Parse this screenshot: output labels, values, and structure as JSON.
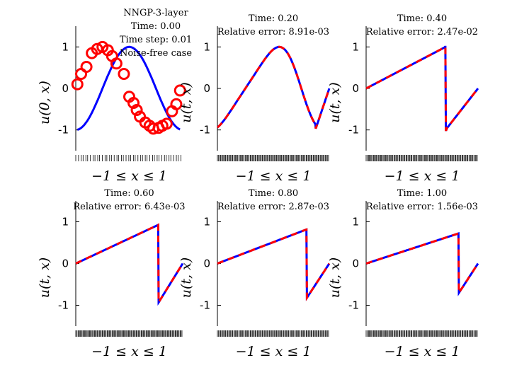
{
  "figure": {
    "method_label": "NNGP-3-layer",
    "time_step_label": "Time step: 0.01",
    "noise_label": "Noise-free case"
  },
  "chart_data": [
    {
      "type": "line",
      "title": "Time: 0.00",
      "xlabel": "−1 ≤ x ≤ 1",
      "ylabel": "u(0, x)",
      "xlim": [
        -1,
        1
      ],
      "ylim": [
        -1.5,
        1.5
      ],
      "yticks": [
        "1",
        "0",
        "-1"
      ],
      "ytick_values": [
        1,
        0,
        -1
      ],
      "marker_x": [
        -0.97,
        -0.9,
        -0.8,
        -0.7,
        -0.6,
        -0.5,
        -0.4,
        -0.32,
        -0.24,
        -0.1,
        0.0,
        0.08,
        0.14,
        0.2,
        0.3,
        0.38,
        0.45,
        0.55,
        0.62,
        0.7,
        0.8,
        0.88,
        0.95
      ],
      "marker_y": [
        0.1,
        0.35,
        0.52,
        0.85,
        0.95,
        1.0,
        0.92,
        0.78,
        0.6,
        0.35,
        -0.2,
        -0.35,
        -0.52,
        -0.68,
        -0.82,
        -0.9,
        -0.97,
        -0.95,
        -0.9,
        -0.85,
        -0.55,
        -0.38,
        -0.05
      ]
    },
    {
      "type": "line",
      "title": "Time: 0.20",
      "subtitle": "Relative error:  8.91e-03",
      "xlabel": "−1 ≤ x ≤ 1",
      "ylabel": "u(t, x)",
      "xlim": [
        -1,
        1
      ],
      "ylim": [
        -1.5,
        1.5
      ],
      "yticks": [
        "1",
        "0",
        "-1"
      ],
      "ytick_values": [
        1,
        0,
        -1
      ],
      "shock": 0.2
    },
    {
      "type": "line",
      "title": "Time: 0.40",
      "subtitle": "Relative error:  2.47e-02",
      "xlabel": "−1 ≤ x ≤ 1",
      "ylabel": "u(t, x)",
      "xlim": [
        -1,
        1
      ],
      "ylim": [
        -1.5,
        1.5
      ],
      "yticks": [
        "1",
        "0",
        "-1"
      ],
      "ytick_values": [
        1,
        0,
        -1
      ],
      "shock": 0.4
    },
    {
      "type": "line",
      "title": "Time: 0.60",
      "subtitle": "Relative error:  6.43e-03",
      "xlabel": "−1 ≤ x ≤ 1",
      "ylabel": "u(t, x)",
      "xlim": [
        -1,
        1
      ],
      "ylim": [
        -1.5,
        1.5
      ],
      "yticks": [
        "1",
        "0",
        "-1"
      ],
      "ytick_values": [
        1,
        0,
        -1
      ],
      "shock": 0.6
    },
    {
      "type": "line",
      "title": "Time: 0.80",
      "subtitle": "Relative error:  2.87e-03",
      "xlabel": "−1 ≤ x ≤ 1",
      "ylabel": "u(t, x)",
      "xlim": [
        -1,
        1
      ],
      "ylim": [
        -1.5,
        1.5
      ],
      "yticks": [
        "1",
        "0",
        "-1"
      ],
      "ytick_values": [
        1,
        0,
        -1
      ],
      "shock": 0.8
    },
    {
      "type": "line",
      "title": "Time: 1.00",
      "subtitle": "Relative error:  1.56e-03",
      "xlabel": "−1 ≤ x ≤ 1",
      "ylabel": "u(t, x)",
      "xlim": [
        -1,
        1
      ],
      "ylim": [
        -1.5,
        1.5
      ],
      "yticks": [
        "1",
        "0",
        "-1"
      ],
      "ytick_values": [
        1,
        0,
        -1
      ],
      "shock": 1.0
    }
  ],
  "colors": {
    "exact": "#0000ff",
    "predicted": "#ff0000",
    "markers": "#ff0000",
    "training_ticks": "#000000"
  }
}
